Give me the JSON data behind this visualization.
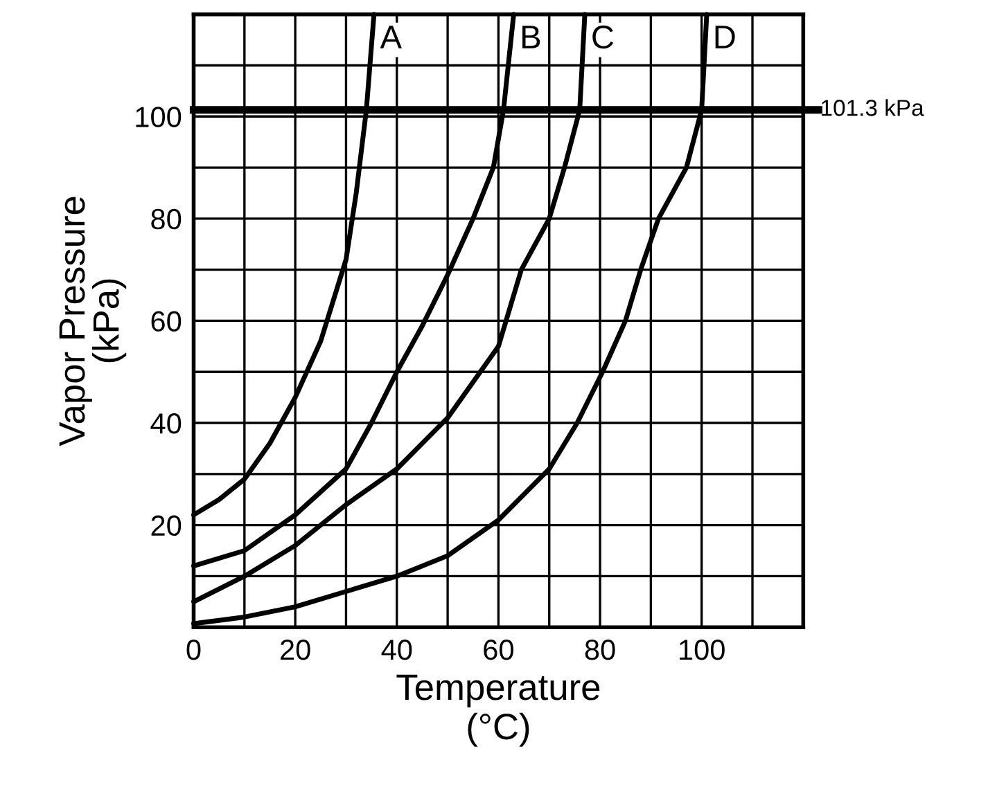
{
  "chart_data": {
    "type": "line",
    "xlabel": "Temperature\n(°C)",
    "ylabel": "Vapor Pressure\n(kPa)",
    "xlim": [
      0,
      120
    ],
    "ylim": [
      0,
      120
    ],
    "xticks": [
      0,
      {
        "value": 10,
        "label": null
      },
      20,
      {
        "value": 30,
        "label": null
      },
      40,
      {
        "value": 50,
        "label": null
      },
      60,
      {
        "value": 70,
        "label": null
      },
      80,
      {
        "value": 90,
        "label": null
      },
      100,
      {
        "value": 110,
        "label": null
      },
      {
        "value": 120,
        "label": null
      }
    ],
    "yticks": [
      {
        "value": 0,
        "label": null
      },
      {
        "value": 10,
        "label": null
      },
      20,
      {
        "value": 30,
        "label": null
      },
      40,
      {
        "value": 50,
        "label": null
      },
      60,
      {
        "value": 70,
        "label": null
      },
      80,
      {
        "value": 90,
        "label": null
      },
      100,
      {
        "value": 110,
        "label": null
      },
      {
        "value": 120,
        "label": null
      }
    ],
    "grid": true,
    "legend": false,
    "marker": "none",
    "line_style": "solid",
    "ref_lines": [
      {
        "axis": "y",
        "value": 101.3,
        "label": "101.3 kPa",
        "color": "#000000"
      }
    ],
    "series": [
      {
        "name": "A",
        "color": "#000000",
        "x": [
          0,
          5,
          10,
          15,
          20,
          25,
          30,
          32,
          34,
          35.5
        ],
        "values": [
          22,
          25,
          29,
          36,
          45,
          56,
          72,
          85,
          101.3,
          120
        ]
      },
      {
        "name": "B",
        "color": "#000000",
        "x": [
          0,
          10,
          20,
          30,
          35,
          40,
          45,
          50,
          55,
          59,
          61,
          63
        ],
        "values": [
          12,
          15,
          22,
          31,
          40,
          50,
          59,
          69,
          80,
          90,
          101.3,
          120
        ]
      },
      {
        "name": "C",
        "color": "#000000",
        "x": [
          0,
          10,
          20,
          30,
          40,
          50,
          60,
          64.5,
          70,
          73,
          76,
          77
        ],
        "values": [
          5,
          10,
          16,
          24,
          31,
          41,
          55,
          70,
          80,
          90,
          101.3,
          120
        ]
      },
      {
        "name": "D",
        "color": "#000000",
        "x": [
          0,
          10,
          20,
          30,
          40,
          50,
          60,
          70,
          75.5,
          80.5,
          85,
          88,
          91.5,
          97,
          100,
          101
        ],
        "values": [
          0.7,
          2,
          4,
          7,
          10,
          14,
          21,
          31,
          40,
          50,
          60,
          70,
          80,
          90,
          101.3,
          120
        ]
      }
    ]
  }
}
